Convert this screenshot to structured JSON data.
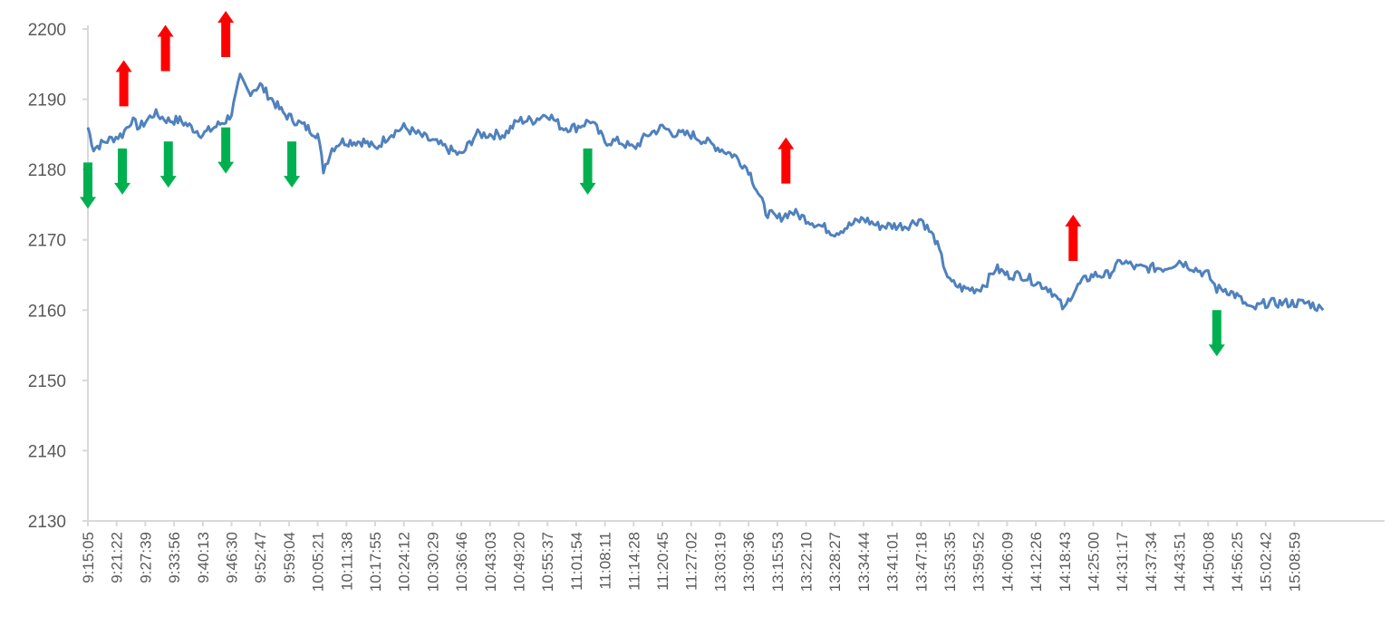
{
  "chart_data": {
    "type": "line",
    "title": "",
    "xlabel": "",
    "ylabel": "",
    "ylim": [
      2130,
      2200
    ],
    "yticks": [
      2130,
      2140,
      2150,
      2160,
      2170,
      2180,
      2190,
      2200
    ],
    "grid": false,
    "legend": "none",
    "x_tick_labels": [
      "9:15:05",
      "9:21:22",
      "9:27:39",
      "9:33:56",
      "9:40:13",
      "9:46:30",
      "9:52:47",
      "9:59:04",
      "10:05:21",
      "10:11:38",
      "10:17:55",
      "10:24:12",
      "10:30:29",
      "10:36:46",
      "10:43:03",
      "10:49:20",
      "10:55:37",
      "11:01:54",
      "11:08:11",
      "11:14:28",
      "11:20:45",
      "11:27:02",
      "13:03:19",
      "13:09:36",
      "13:15:53",
      "13:22:10",
      "13:28:27",
      "13:34:44",
      "13:41:01",
      "13:47:18",
      "13:53:35",
      "13:59:52",
      "14:06:09",
      "14:12:26",
      "14:18:43",
      "14:25:00",
      "14:31:17",
      "14:37:34",
      "14:43:51",
      "14:50:08",
      "14:56:25",
      "15:02:42",
      "15:08:59"
    ],
    "series": [
      {
        "color": "#4f81bd",
        "x_index": [
          0,
          0.2,
          0.6,
          1.2,
          1.5,
          1.8,
          2.3,
          2.8,
          3.2,
          3.6,
          4.0,
          4.4,
          4.8,
          5.0,
          5.3,
          5.6,
          6.0,
          6.4,
          6.8,
          7.2,
          7.6,
          8.0,
          8.2,
          8.5,
          8.8,
          9.2,
          9.6,
          10,
          10.5,
          11,
          11.5,
          12,
          12.5,
          13,
          13.5,
          14,
          14.5,
          15,
          15.5,
          16,
          16.5,
          17,
          17.5,
          18,
          18.5,
          19,
          19.5,
          20,
          20.5,
          21,
          21.5,
          22,
          22.5,
          23,
          23.4,
          23.6,
          24,
          24.5,
          25,
          25.5,
          26,
          26.5,
          27,
          27.5,
          28,
          28.5,
          29,
          29.5,
          30,
          30.5,
          31,
          31.3,
          31.6,
          32,
          32.5,
          33,
          33.5,
          34,
          34.2,
          34.6,
          35,
          35.5,
          36,
          36.5,
          37,
          37.5,
          38,
          38.5,
          39,
          39.3,
          39.6,
          40,
          40.5,
          41,
          41.5,
          42,
          42.5,
          43
        ],
        "values": [
          2186,
          2183,
          2184,
          2185,
          2187,
          2186,
          2188,
          2187,
          2187,
          2186,
          2185,
          2186,
          2187,
          2188,
          2193,
          2191,
          2192,
          2190,
          2188,
          2187,
          2186,
          2185,
          2180,
          2183,
          2184,
          2184,
          2184,
          2183,
          2185,
          2186,
          2185,
          2184,
          2183,
          2182,
          2185,
          2185,
          2185,
          2187,
          2187,
          2188,
          2186,
          2186,
          2187,
          2184,
          2184,
          2183,
          2185,
          2186,
          2185,
          2185,
          2184,
          2183,
          2182,
          2180,
          2176,
          2174,
          2173,
          2174,
          2173,
          2172,
          2171,
          2172,
          2173,
          2172,
          2172,
          2172,
          2173,
          2170,
          2164,
          2163,
          2163,
          2164,
          2166,
          2165,
          2165,
          2164,
          2163,
          2160,
          2162,
          2164,
          2165,
          2165,
          2167,
          2166,
          2166,
          2166,
          2167,
          2166,
          2165,
          2163,
          2163,
          2162,
          2160,
          2161,
          2161,
          2161,
          2161,
          2160
        ]
      }
    ],
    "markers": [
      {
        "x_index": 0.0,
        "value": 2181,
        "direction": "down",
        "color": "#00b050"
      },
      {
        "x_index": 1.2,
        "value": 2183,
        "direction": "down",
        "color": "#00b050"
      },
      {
        "x_index": 1.25,
        "value": 2189,
        "direction": "up",
        "color": "#ff0000"
      },
      {
        "x_index": 2.7,
        "value": 2194,
        "direction": "up",
        "color": "#ff0000"
      },
      {
        "x_index": 2.8,
        "value": 2184,
        "direction": "down",
        "color": "#00b050"
      },
      {
        "x_index": 4.8,
        "value": 2196,
        "direction": "up",
        "color": "#ff0000"
      },
      {
        "x_index": 4.8,
        "value": 2186,
        "direction": "down",
        "color": "#00b050"
      },
      {
        "x_index": 7.1,
        "value": 2184,
        "direction": "down",
        "color": "#00b050"
      },
      {
        "x_index": 17.4,
        "value": 2183,
        "direction": "down",
        "color": "#00b050"
      },
      {
        "x_index": 24.3,
        "value": 2178,
        "direction": "up",
        "color": "#ff0000"
      },
      {
        "x_index": 34.3,
        "value": 2167,
        "direction": "up",
        "color": "#ff0000"
      },
      {
        "x_index": 39.3,
        "value": 2160,
        "direction": "down",
        "color": "#00b050"
      }
    ]
  }
}
